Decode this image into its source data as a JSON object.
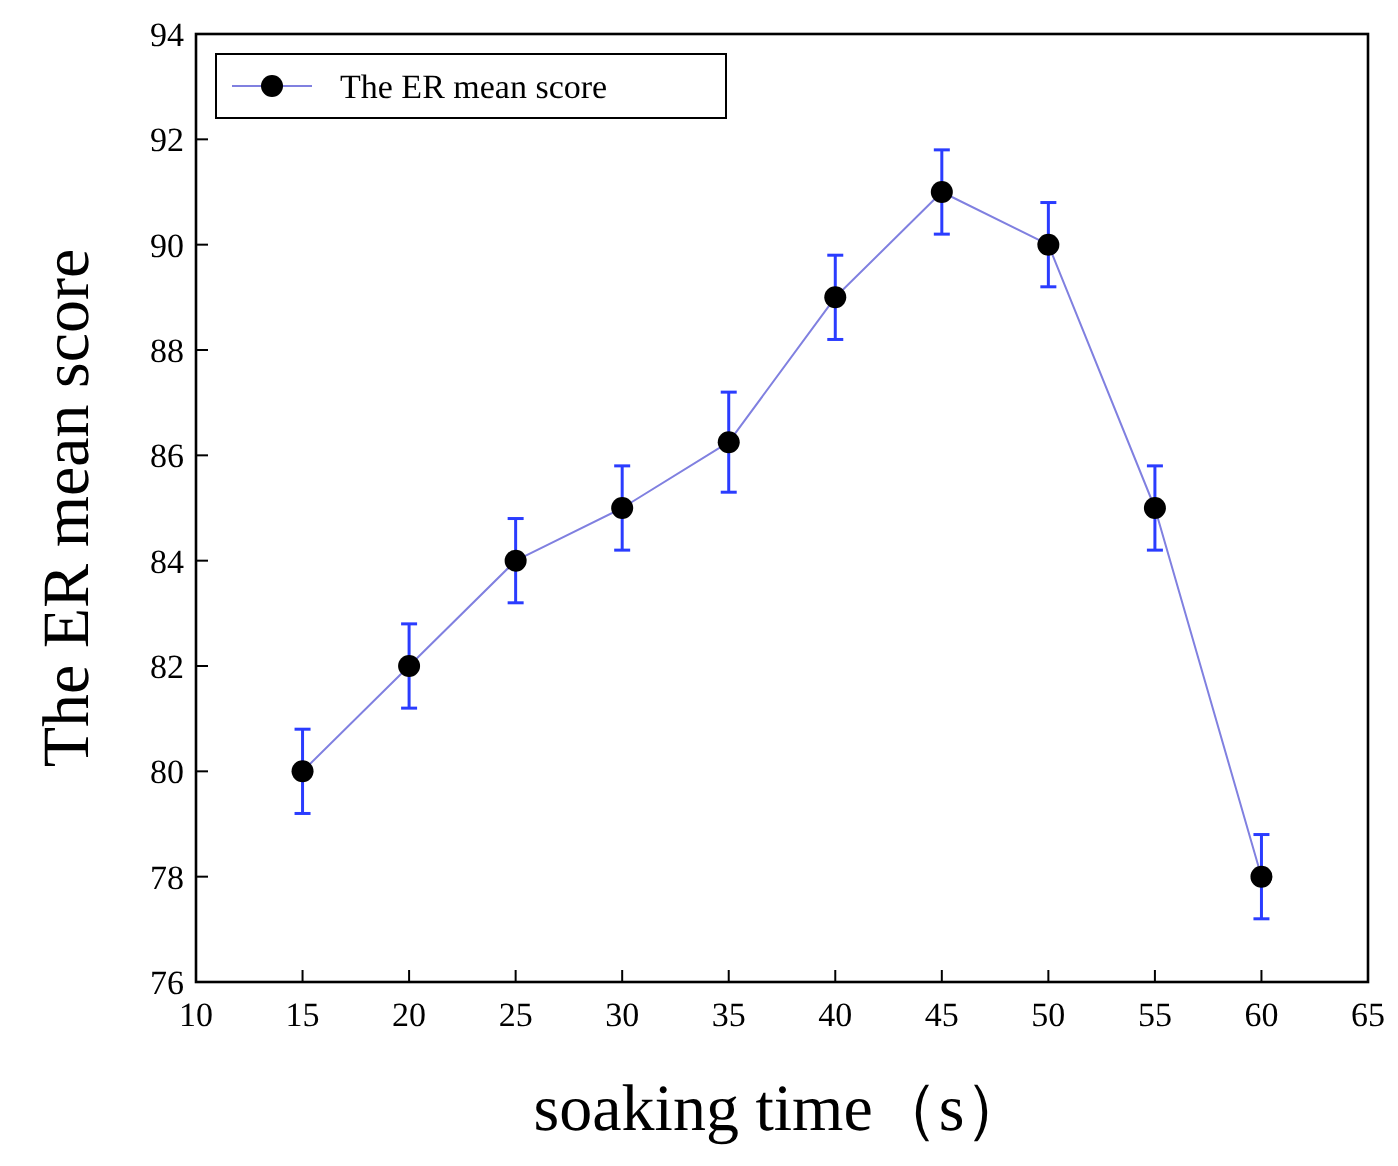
{
  "chart_data": {
    "type": "line",
    "xlabel": "soaking time（s）",
    "ylabel": "The ER mean score",
    "x": [
      15,
      20,
      25,
      30,
      35,
      40,
      45,
      50,
      55,
      60
    ],
    "series": [
      {
        "name": "The ER mean score",
        "color": "#8080e0",
        "values": [
          80,
          82,
          84,
          85,
          86.25,
          89,
          91,
          90,
          85,
          78
        ],
        "errors": [
          0.8,
          0.8,
          0.8,
          0.8,
          0.95,
          0.8,
          0.8,
          0.8,
          0.8,
          0.8
        ]
      }
    ],
    "xlim": [
      10,
      65
    ],
    "xticks": [
      10,
      15,
      20,
      25,
      30,
      35,
      40,
      45,
      50,
      55,
      60,
      65
    ],
    "ylim": [
      76,
      94
    ],
    "yticks": [
      76,
      78,
      80,
      82,
      84,
      86,
      88,
      90,
      92,
      94
    ],
    "marker": "circle",
    "line_style": "solid",
    "grid": false,
    "legend": "top left"
  }
}
